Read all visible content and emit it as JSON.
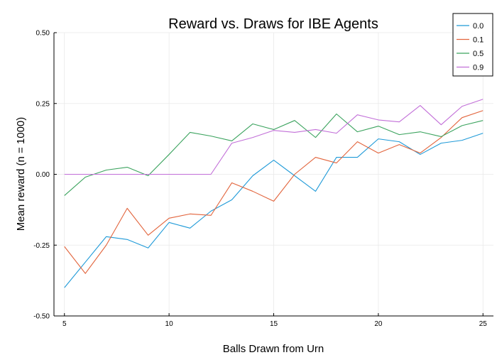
{
  "chart_data": {
    "type": "line",
    "title": "Reward vs. Draws for IBE Agents",
    "xlabel": "Balls Drawn from Urn",
    "ylabel": "Mean reward (n = 1000)",
    "xlim": [
      4.5,
      25.5
    ],
    "ylim": [
      -0.5,
      0.5
    ],
    "xticks": [
      5,
      10,
      15,
      20,
      25
    ],
    "xtick_labels": [
      "5",
      "10",
      "15",
      "20",
      "25"
    ],
    "yticks": [
      -0.5,
      -0.25,
      0,
      0.25,
      0.5
    ],
    "ytick_labels": [
      "-0.50",
      "-0.25",
      "0.00",
      "0.25",
      "0.50"
    ],
    "grid": true,
    "legend_position": "top-right",
    "x": [
      5,
      6,
      7,
      8,
      9,
      10,
      11,
      12,
      13,
      14,
      15,
      16,
      17,
      18,
      19,
      20,
      21,
      22,
      23,
      24,
      25
    ],
    "series": [
      {
        "name": "0.0",
        "color": "#1f9ad8",
        "values": [
          -0.4,
          -0.31,
          -0.22,
          -0.23,
          -0.26,
          -0.17,
          -0.19,
          -0.13,
          -0.09,
          -0.005,
          0.05,
          -0.005,
          -0.06,
          0.06,
          0.06,
          0.125,
          0.115,
          0.07,
          0.11,
          0.12,
          0.145
        ]
      },
      {
        "name": "0.1",
        "color": "#e2643c",
        "values": [
          -0.255,
          -0.35,
          -0.25,
          -0.12,
          -0.215,
          -0.155,
          -0.14,
          -0.145,
          -0.03,
          -0.06,
          -0.095,
          0.0,
          0.06,
          0.04,
          0.115,
          0.075,
          0.105,
          0.075,
          0.13,
          0.2,
          0.225
        ]
      },
      {
        "name": "0.5",
        "color": "#3ba35e",
        "values": [
          -0.075,
          -0.01,
          0.015,
          0.025,
          -0.005,
          0.07,
          0.148,
          0.135,
          0.118,
          0.178,
          0.158,
          0.19,
          0.13,
          0.213,
          0.15,
          0.17,
          0.14,
          0.15,
          0.133,
          0.172,
          0.19
        ]
      },
      {
        "name": "0.9",
        "color": "#c26fd8",
        "values": [
          0.0,
          0.0,
          0.0,
          0.0,
          0.0,
          0.0,
          0.0,
          0.0,
          0.11,
          0.13,
          0.155,
          0.148,
          0.158,
          0.145,
          0.21,
          0.192,
          0.185,
          0.243,
          0.175,
          0.24,
          0.265
        ]
      }
    ]
  }
}
